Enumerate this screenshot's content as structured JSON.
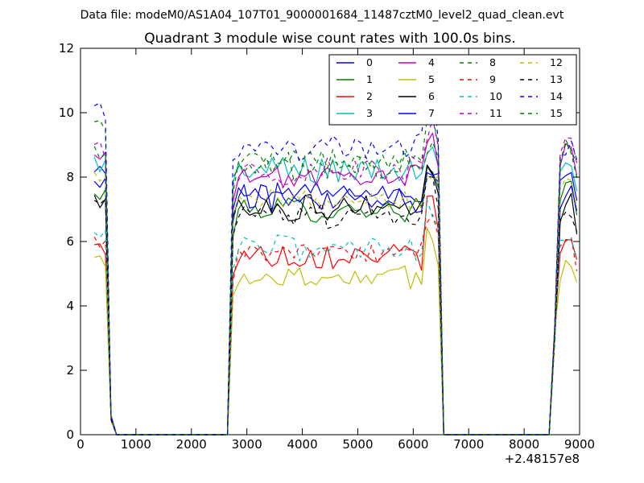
{
  "page": {
    "suptitle": "Data file: modeM0/AS1A04_107T01_9000001684_11487cztM0_level2_quad_clean.evt"
  },
  "chart_data": {
    "type": "line",
    "title": "Quadrant 3 module wise count rates with 100.0s bins.",
    "xlabel": "",
    "ylabel": "",
    "xlim": [
      0,
      9000
    ],
    "ylim": [
      0,
      12
    ],
    "x_offset_label": "+2.48157e8",
    "xticks": [
      0,
      1000,
      2000,
      3000,
      4000,
      5000,
      6000,
      7000,
      8000,
      9000
    ],
    "yticks": [
      0,
      2,
      4,
      6,
      8,
      10,
      12
    ],
    "grid": false,
    "legend": {
      "placement": "upper-right",
      "columns": 4
    },
    "segments": [
      {
        "x_start": 250,
        "x_end": 450,
        "level_x": [
          250,
          450
        ]
      },
      {
        "x_start": 2750,
        "x_end": 6450,
        "level_x": [
          2750,
          6450
        ]
      },
      {
        "x_start": 8650,
        "x_end": 8950,
        "level_x": [
          8650,
          8950
        ]
      }
    ],
    "zero_intervals": [
      [
        650,
        2650
      ],
      [
        6650,
        8450
      ]
    ],
    "series": [
      {
        "name": "0",
        "color": "#0000ff",
        "dash": "solid",
        "levels": {
          "seg1": 8.1,
          "seg2": 7.5,
          "seg3": 8.2
        }
      },
      {
        "name": "1",
        "color": "#008000",
        "dash": "solid",
        "levels": {
          "seg1": 7.4,
          "seg2": 7.0,
          "seg3": 7.6
        }
      },
      {
        "name": "2",
        "color": "#ff0000",
        "dash": "solid",
        "levels": {
          "seg1": 5.8,
          "seg2": 5.6,
          "seg3": 6.0
        }
      },
      {
        "name": "3",
        "color": "#00bfbf",
        "dash": "solid",
        "levels": {
          "seg1": 8.5,
          "seg2": 8.2,
          "seg3": 8.6
        }
      },
      {
        "name": "4",
        "color": "#bf00bf",
        "dash": "solid",
        "levels": {
          "seg1": 8.6,
          "seg2": 8.0,
          "seg3": 8.8
        }
      },
      {
        "name": "5",
        "color": "#bfbf00",
        "dash": "solid",
        "levels": {
          "seg1": 5.4,
          "seg2": 4.9,
          "seg3": 5.3
        }
      },
      {
        "name": "6",
        "color": "#000000",
        "dash": "solid",
        "levels": {
          "seg1": 7.3,
          "seg2": 7.1,
          "seg3": 7.2
        }
      },
      {
        "name": "7",
        "color": "#0000ff",
        "dash": "solid",
        "levels": {
          "seg1": 7.7,
          "seg2": 7.4,
          "seg3": 7.7
        }
      },
      {
        "name": "8",
        "color": "#008000",
        "dash": "dashed",
        "levels": {
          "seg1": 9.6,
          "seg2": 8.5,
          "seg3": 9.0
        }
      },
      {
        "name": "9",
        "color": "#ff0000",
        "dash": "dashed",
        "levels": {
          "seg1": 6.0,
          "seg2": 5.6,
          "seg3": 6.0
        }
      },
      {
        "name": "10",
        "color": "#00bfbf",
        "dash": "dashed",
        "levels": {
          "seg1": 6.1,
          "seg2": 5.8,
          "seg3": 6.2
        }
      },
      {
        "name": "11",
        "color": "#bf00bf",
        "dash": "dashed",
        "levels": {
          "seg1": 8.8,
          "seg2": 8.2,
          "seg3": 8.9
        }
      },
      {
        "name": "12",
        "color": "#bfbf00",
        "dash": "dashed",
        "levels": {
          "seg1": 8.0,
          "seg2": 7.3,
          "seg3": 7.9
        }
      },
      {
        "name": "13",
        "color": "#000000",
        "dash": "dashed",
        "levels": {
          "seg1": 7.1,
          "seg2": 6.8,
          "seg3": 7.0
        }
      },
      {
        "name": "14",
        "color": "#0000ff",
        "dash": "dashed",
        "levels": {
          "seg1": 10.0,
          "seg2": 8.9,
          "seg3": 9.0
        }
      },
      {
        "name": "15",
        "color": "#008000",
        "dash": "dashed",
        "levels": {
          "seg1": 8.7,
          "seg2": 8.3,
          "seg3": 8.9
        }
      }
    ]
  }
}
